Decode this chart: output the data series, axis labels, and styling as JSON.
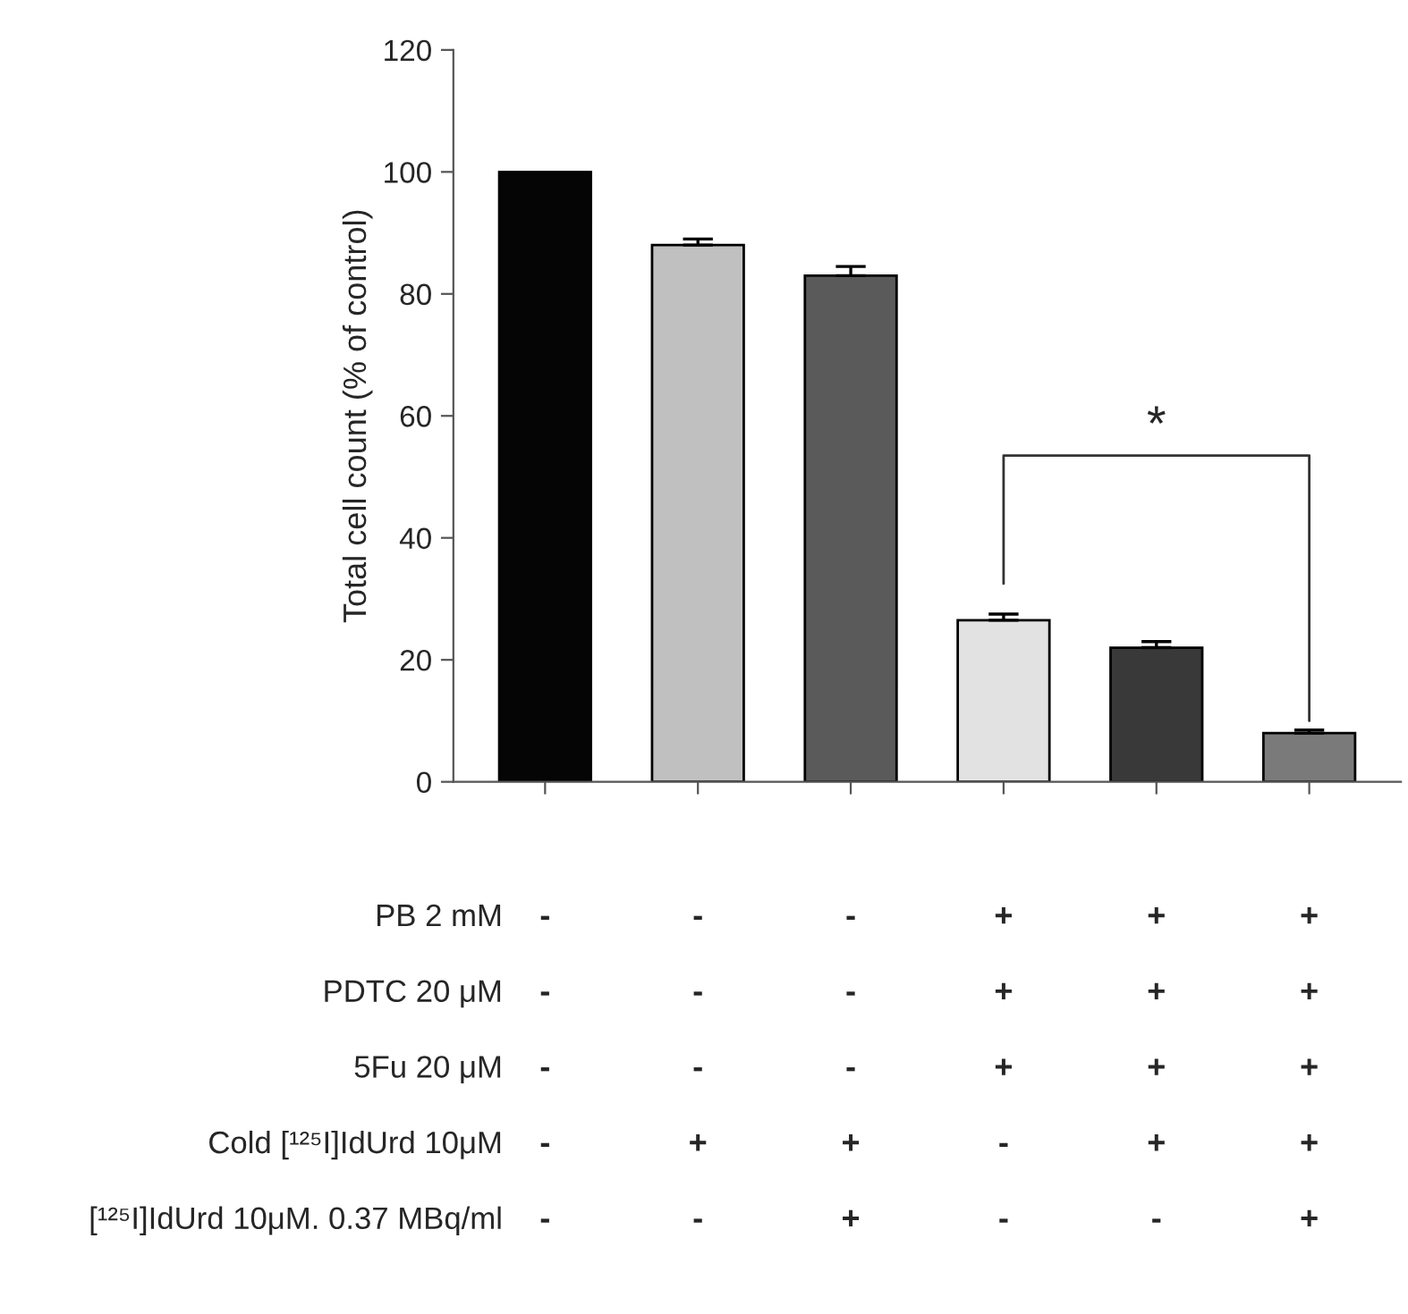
{
  "chart_data": {
    "type": "bar",
    "ylabel": "Total cell count (% of control)",
    "categories": [
      "-\n-\n-\n-\n-",
      "-\n-\n-\n+\n-",
      "-\n-\n-\n+\n+",
      "+\n+\n+\n-\n-",
      "+\n+\n+\n+\n-",
      "+\n+\n+\n+\n+"
    ],
    "values": [
      100,
      88,
      83,
      26.5,
      22,
      8
    ],
    "errors": [
      null,
      1,
      1.5,
      1,
      1,
      0.5
    ],
    "colors": [
      "#050505",
      "#c0c0c0",
      "#5a5a5a",
      "#e2e2e2",
      "#393939",
      "#7a7a7a"
    ],
    "ylim": [
      0,
      120
    ],
    "yticks": [
      0,
      20,
      40,
      60,
      80,
      100,
      120
    ],
    "grid": false,
    "legend": false,
    "annotations": [
      "PB 2 mM",
      "PDTC 20 μM",
      "5Fu 20 μM",
      "Cold [¹²⁵I]IdUrd 10μM",
      "[¹²⁵I]IdUrd 10μM. 0.37 MBq/ml",
      "*"
    ]
  }
}
